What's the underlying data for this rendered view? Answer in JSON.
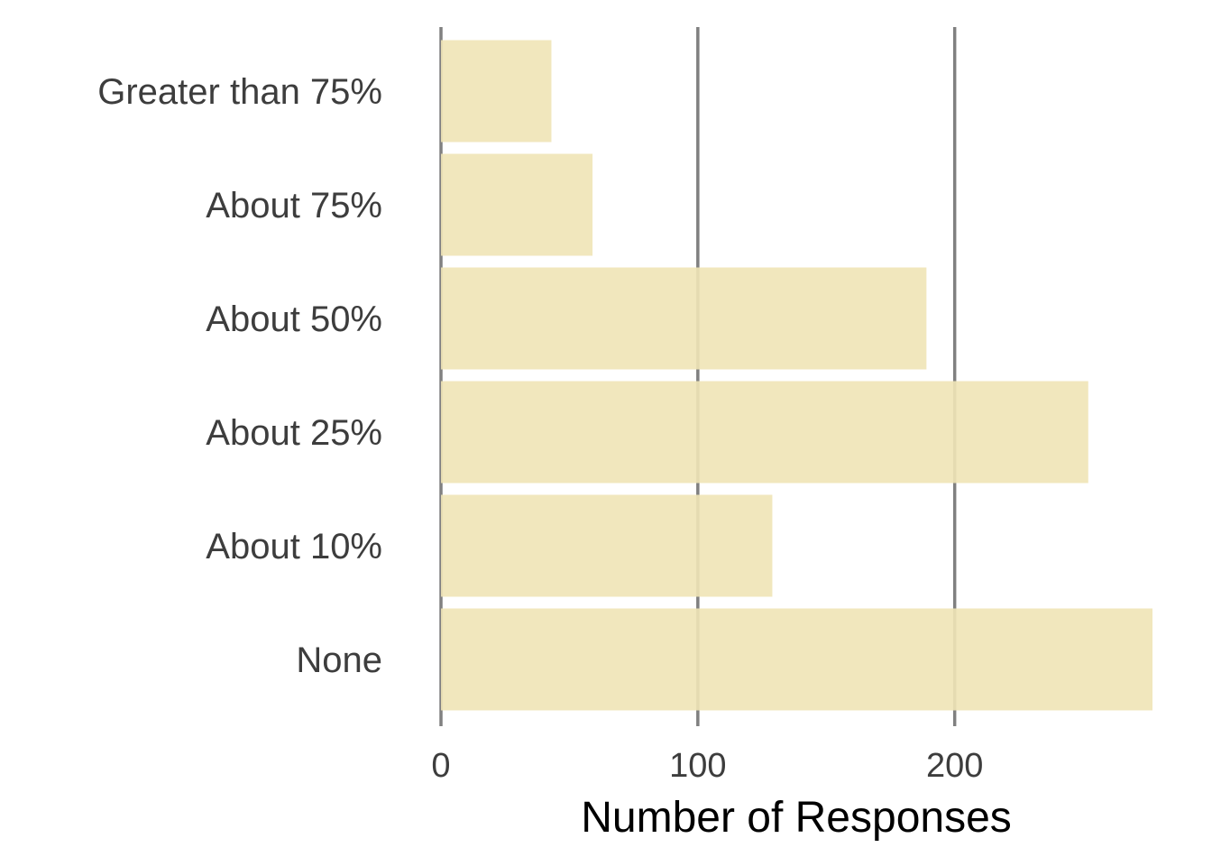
{
  "chart_data": {
    "type": "bar",
    "orientation": "horizontal",
    "categories": [
      "None",
      "About 10%",
      "About 25%",
      "About 50%",
      "About 75%",
      "Greater than 75%"
    ],
    "values": [
      277,
      129,
      252,
      189,
      59,
      43
    ],
    "title": "",
    "xlabel": "Number of Responses",
    "ylabel": "",
    "xlim": [
      0,
      277
    ],
    "xticks": [
      "0",
      "100",
      "200"
    ],
    "grid": "vertical major gridlines",
    "legend": "none",
    "bar_color": "#f0e4b6",
    "grid_color": "#808080",
    "label_color": "#3d3d3d"
  }
}
